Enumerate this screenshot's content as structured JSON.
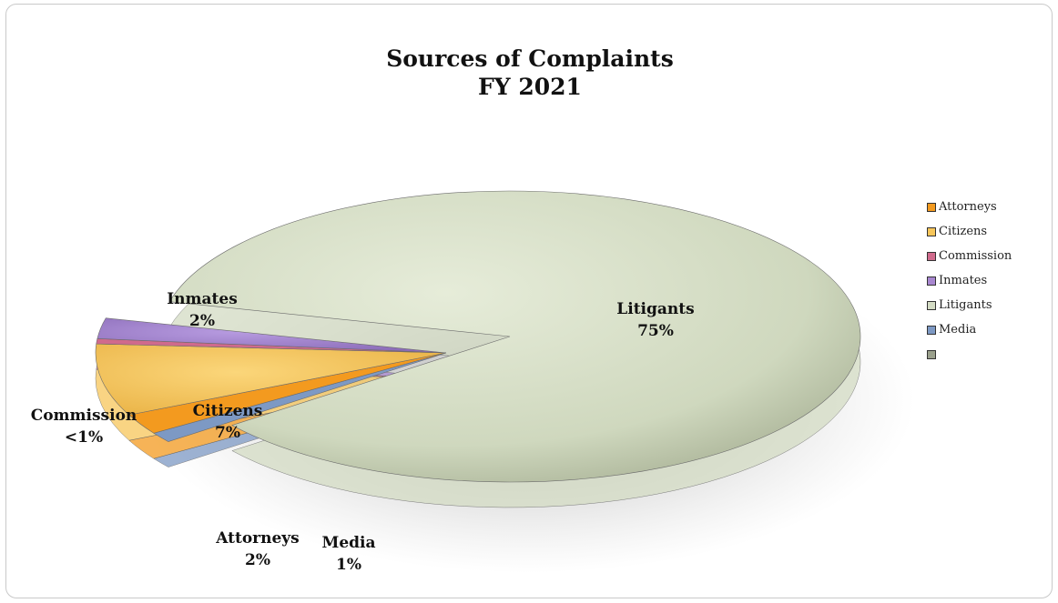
{
  "chart_data": {
    "type": "pie",
    "title": "Sources of Complaints",
    "subtitle": "FY 2021",
    "categories": [
      "Attorneys",
      "Citizens",
      "Commission",
      "Inmates",
      "Litigants",
      "Media"
    ],
    "series": [
      {
        "values": [
          2,
          7,
          0.5,
          2,
          75,
          1
        ],
        "labels": [
          "2%",
          "7%",
          "<1%",
          "2%",
          "75%",
          "1%"
        ]
      }
    ],
    "legend": {
      "position": "right",
      "items": [
        "Attorneys",
        "Citizens",
        "Commission",
        "Inmates",
        "Litigants",
        "Media",
        ""
      ]
    },
    "colors": {
      "Attorneys": "#f39a1f",
      "Citizens": "#f7c65a",
      "Commission": "#d06a8c",
      "Inmates": "#a887d0",
      "Litigants": "#d4dcc4",
      "Media": "#7d99c4"
    }
  }
}
